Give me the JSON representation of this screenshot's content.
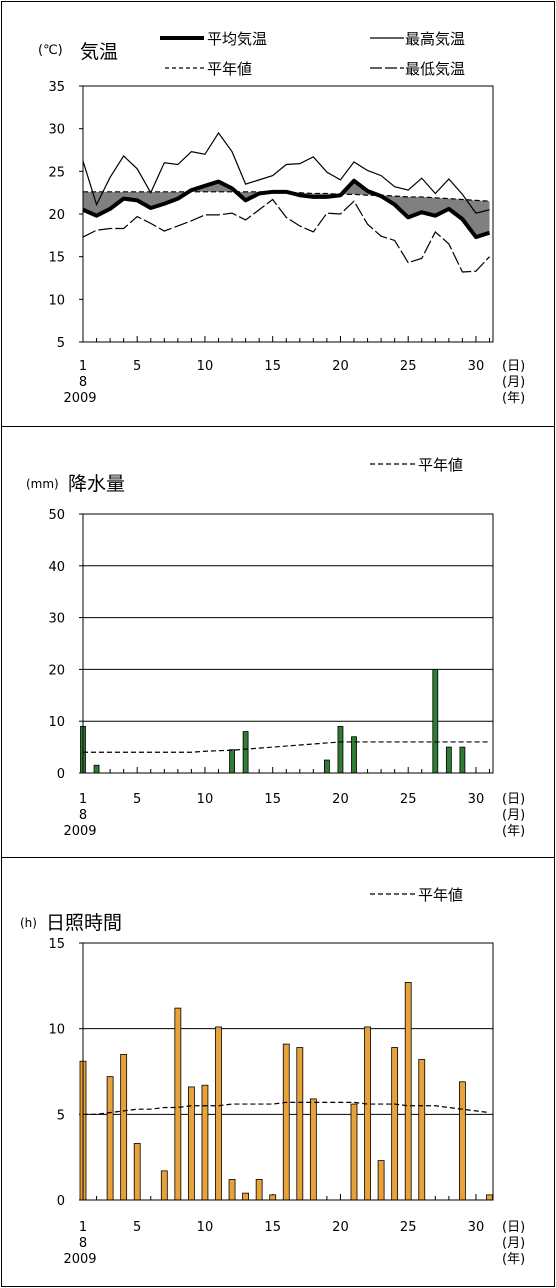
{
  "colors": {
    "panel_border": "#000000",
    "band_fill": "#808080",
    "precip_bar": "#2e7d32",
    "sunshine_bar": "#e8a23a",
    "axis": "#000000",
    "grid": "#000000"
  },
  "panels": [
    {
      "id": "temp",
      "title": "気温",
      "unit": "(℃)",
      "legend": [
        {
          "label": "平均気温",
          "style": "thick"
        },
        {
          "label": "最高気温",
          "style": "thin"
        },
        {
          "label": "平年値",
          "style": "dashed"
        },
        {
          "label": "最低気温",
          "style": "long-dash"
        }
      ]
    },
    {
      "id": "precip",
      "title": "降水量",
      "unit": "(mm)",
      "legend": [
        {
          "label": "平年値",
          "style": "dashed"
        }
      ]
    },
    {
      "id": "sun",
      "title": "日照時間",
      "unit": "(h)",
      "legend": [
        {
          "label": "平年値",
          "style": "dashed"
        }
      ]
    }
  ],
  "x_axis_labels": {
    "ticks": [
      "1",
      "5",
      "10",
      "15",
      "20",
      "25",
      "30"
    ],
    "month": "8",
    "year": "2009",
    "day_unit": "(日)",
    "month_unit": "(月)",
    "year_unit": "(年)"
  },
  "chart_data": [
    {
      "type": "line",
      "title": "気温",
      "ylabel": "(℃)",
      "ylim": [
        5,
        35
      ],
      "yticks": [
        "5",
        "10",
        "15",
        "20",
        "25",
        "30",
        "35"
      ],
      "grid": false,
      "x": [
        1,
        2,
        3,
        4,
        5,
        6,
        7,
        8,
        9,
        10,
        11,
        12,
        13,
        14,
        15,
        16,
        17,
        18,
        19,
        20,
        21,
        22,
        23,
        24,
        25,
        26,
        27,
        28,
        29,
        30,
        31
      ],
      "series": [
        {
          "name": "平均気温",
          "values": [
            20.5,
            19.8,
            20.6,
            21.8,
            21.6,
            20.7,
            21.2,
            21.8,
            22.8,
            23.3,
            23.8,
            23.0,
            21.6,
            22.4,
            22.6,
            22.6,
            22.2,
            22.0,
            22.0,
            22.2,
            23.9,
            22.7,
            22.1,
            21.1,
            19.6,
            20.2,
            19.8,
            20.6,
            19.4,
            17.3,
            17.8
          ]
        },
        {
          "name": "最高気温",
          "values": [
            26.2,
            21.1,
            24.3,
            26.8,
            25.3,
            22.5,
            26.0,
            25.8,
            27.3,
            27.0,
            29.5,
            27.3,
            23.5,
            24.0,
            24.5,
            25.8,
            25.9,
            26.7,
            24.9,
            24.0,
            26.1,
            25.1,
            24.5,
            23.2,
            22.8,
            24.2,
            22.4,
            24.1,
            22.3,
            20.1,
            20.5
          ]
        },
        {
          "name": "最低気温",
          "values": [
            17.3,
            18.1,
            18.3,
            18.3,
            19.7,
            18.9,
            18.0,
            18.6,
            19.2,
            19.9,
            19.9,
            20.1,
            19.3,
            20.5,
            21.7,
            19.6,
            18.6,
            17.9,
            20.1,
            20.0,
            21.5,
            18.8,
            17.4,
            16.9,
            14.3,
            14.8,
            17.9,
            16.5,
            13.2,
            13.3,
            15.0
          ]
        },
        {
          "name": "平年値",
          "values": [
            22.6,
            22.6,
            22.6,
            22.6,
            22.6,
            22.6,
            22.6,
            22.6,
            22.6,
            22.6,
            22.6,
            22.6,
            22.6,
            22.6,
            22.5,
            22.5,
            22.5,
            22.4,
            22.4,
            22.3,
            22.3,
            22.2,
            22.2,
            22.1,
            22.0,
            22.0,
            21.9,
            21.8,
            21.7,
            21.6,
            21.5
          ]
        }
      ]
    },
    {
      "type": "bar",
      "title": "降水量",
      "ylabel": "(mm)",
      "ylim": [
        0,
        50
      ],
      "yticks": [
        "0",
        "10",
        "20",
        "30",
        "40",
        "50"
      ],
      "grid": true,
      "x": [
        1,
        2,
        3,
        4,
        5,
        6,
        7,
        8,
        9,
        10,
        11,
        12,
        13,
        14,
        15,
        16,
        17,
        18,
        19,
        20,
        21,
        22,
        23,
        24,
        25,
        26,
        27,
        28,
        29,
        30,
        31
      ],
      "series": [
        {
          "name": "降水量",
          "values": [
            9.0,
            1.5,
            0,
            0,
            0,
            0,
            0,
            0,
            0,
            0,
            0,
            4.5,
            8.0,
            0,
            0,
            0,
            0,
            0,
            2.5,
            9.0,
            7.0,
            0,
            0,
            0,
            0,
            0,
            20.0,
            5.0,
            5.0,
            0,
            0
          ]
        },
        {
          "name": "平年値",
          "values": [
            4.0,
            4.0,
            4.0,
            4.0,
            4.0,
            4.0,
            4.0,
            4.0,
            4.0,
            4.2,
            4.3,
            4.4,
            4.6,
            4.8,
            5.0,
            5.2,
            5.4,
            5.6,
            5.8,
            6.0,
            6.0,
            6.0,
            6.0,
            6.0,
            6.0,
            6.0,
            6.0,
            6.0,
            6.0,
            6.0,
            6.0
          ]
        }
      ]
    },
    {
      "type": "bar",
      "title": "日照時間",
      "ylabel": "(h)",
      "ylim": [
        0,
        15
      ],
      "yticks": [
        "0",
        "5",
        "10",
        "15"
      ],
      "grid": true,
      "x": [
        1,
        2,
        3,
        4,
        5,
        6,
        7,
        8,
        9,
        10,
        11,
        12,
        13,
        14,
        15,
        16,
        17,
        18,
        19,
        20,
        21,
        22,
        23,
        24,
        25,
        26,
        27,
        28,
        29,
        30,
        31
      ],
      "series": [
        {
          "name": "日照時間",
          "values": [
            8.1,
            0,
            7.2,
            8.5,
            3.3,
            0,
            1.7,
            11.2,
            6.6,
            6.7,
            10.1,
            1.2,
            0.4,
            1.2,
            0.3,
            9.1,
            8.9,
            5.9,
            0,
            0,
            5.6,
            10.1,
            2.3,
            8.9,
            12.7,
            8.2,
            0,
            0,
            6.9,
            0,
            0.3
          ]
        },
        {
          "name": "平年値",
          "values": [
            5.0,
            5.0,
            5.1,
            5.2,
            5.3,
            5.3,
            5.4,
            5.4,
            5.5,
            5.5,
            5.5,
            5.6,
            5.6,
            5.6,
            5.6,
            5.7,
            5.7,
            5.7,
            5.7,
            5.7,
            5.7,
            5.6,
            5.6,
            5.6,
            5.5,
            5.5,
            5.5,
            5.4,
            5.3,
            5.2,
            5.1
          ]
        }
      ]
    }
  ]
}
